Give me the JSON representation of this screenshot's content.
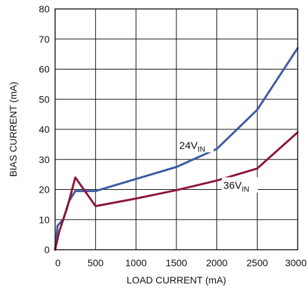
{
  "chart_data": {
    "type": "line",
    "xlabel": "LOAD CURRENT (mA)",
    "ylabel": "BIAS CURRENT (mA)",
    "xlim": [
      0,
      3000
    ],
    "ylim": [
      0,
      80
    ],
    "x_ticks": [
      "0",
      "500",
      "1000",
      "1500",
      "2000",
      "2500",
      "3000"
    ],
    "y_ticks": [
      "0",
      "10",
      "20",
      "30",
      "40",
      "50",
      "60",
      "70",
      "80"
    ],
    "grid": true,
    "series": [
      {
        "name": "24V_IN",
        "label_main": "24V",
        "label_sub": "IN",
        "color": "#3a5aa0",
        "x": [
          0,
          30,
          100,
          170,
          250,
          500,
          1000,
          1500,
          2000,
          2500,
          3000
        ],
        "y": [
          0,
          8,
          10,
          16,
          19.5,
          19.5,
          23.5,
          27.5,
          33.5,
          46.5,
          67
        ]
      },
      {
        "name": "36V_IN",
        "label_main": "36V",
        "label_sub": "IN",
        "color": "#8c1538",
        "x": [
          0,
          50,
          150,
          250,
          500,
          1000,
          1500,
          2000,
          2500,
          3000
        ],
        "y": [
          0,
          6,
          14,
          24,
          14.5,
          17,
          19.8,
          23,
          27,
          39
        ]
      }
    ]
  }
}
